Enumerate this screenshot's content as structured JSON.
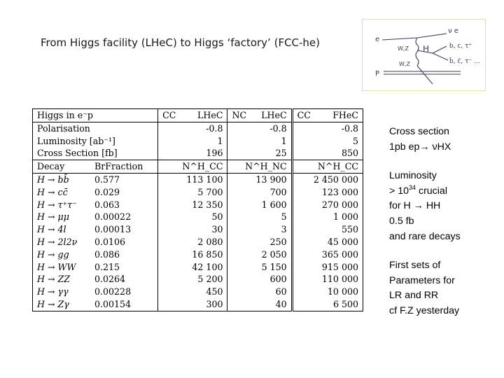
{
  "title": "From Higgs facility (LHeC) to Higgs ‘factory’ (FCC-he)",
  "diagram": {
    "labels": {
      "e": "e",
      "nu_e": "ν e",
      "wz_top": "W,Z",
      "h": "H",
      "bct": "b, c, τ⁺",
      "bbar": "b̄, c̄, τ⁻ ...",
      "wz_bottom": "W,Z",
      "p": "P"
    }
  },
  "table": {
    "header": {
      "name": "Higgs in e⁻p",
      "cc_lhec": [
        "CC",
        "LHeC"
      ],
      "nc_lhec": [
        "NC",
        "LHeC"
      ],
      "cc_fhec": [
        "CC",
        "FHeC"
      ]
    },
    "params": [
      {
        "label": "Polarisation",
        "cc": "-0.8",
        "nc": "-0.8",
        "fcc": "-0.8"
      },
      {
        "label": "Luminosity [ab⁻¹]",
        "cc": "1",
        "nc": "1",
        "fcc": "5"
      },
      {
        "label": "Cross Section [fb]",
        "cc": "196",
        "nc": "25",
        "fcc": "850"
      }
    ],
    "decay_header": {
      "decay": "Decay",
      "brfraction": "BrFraction",
      "cc": "N^H_CC",
      "nc": "N^H_NC",
      "fcc": "N^H_CC"
    },
    "decays": [
      {
        "mode": "H → bb̄",
        "br": "0.577",
        "cc": "113 100",
        "nc": "13 900",
        "fcc": "2 450 000"
      },
      {
        "mode": "H → cc̄",
        "br": "0.029",
        "cc": "5 700",
        "nc": "700",
        "fcc": "123 000"
      },
      {
        "mode": "H → τ⁺τ⁻",
        "br": "0.063",
        "cc": "12 350",
        "nc": "1 600",
        "fcc": "270 000"
      },
      {
        "mode": "H → μμ",
        "br": "0.00022",
        "cc": "50",
        "nc": "5",
        "fcc": "1 000"
      },
      {
        "mode": "H → 4l",
        "br": "0.00013",
        "cc": "30",
        "nc": "3",
        "fcc": "550"
      },
      {
        "mode": "H → 2l2ν",
        "br": "0.0106",
        "cc": "2 080",
        "nc": "250",
        "fcc": "45 000"
      },
      {
        "mode": "H → gg",
        "br": "0.086",
        "cc": "16 850",
        "nc": "2 050",
        "fcc": "365 000"
      },
      {
        "mode": "H → WW",
        "br": "0.215",
        "cc": "42 100",
        "nc": "5 150",
        "fcc": "915 000"
      },
      {
        "mode": "H → ZZ",
        "br": "0.0264",
        "cc": "5 200",
        "nc": "600",
        "fcc": "110 000"
      },
      {
        "mode": "H → γγ",
        "br": "0.00228",
        "cc": "450",
        "nc": "60",
        "fcc": "10 000"
      },
      {
        "mode": "H → Zγ",
        "br": "0.00154",
        "cc": "300",
        "nc": "40",
        "fcc": "6 500"
      }
    ]
  },
  "notes": {
    "cross_section": [
      "Cross section",
      "1pb ep→ νHX"
    ],
    "luminosity": {
      "line1": "Luminosity",
      "line2_prefix": "> 10",
      "line2_sup": "34",
      "line2_suffix": " crucial",
      "line3": "for H → HH",
      "line4": "0.5 fb",
      "line5": "and rare decays"
    },
    "parameters": [
      "First sets of",
      "Parameters for",
      "LR and RR",
      "cf F.Z yesterday"
    ]
  }
}
